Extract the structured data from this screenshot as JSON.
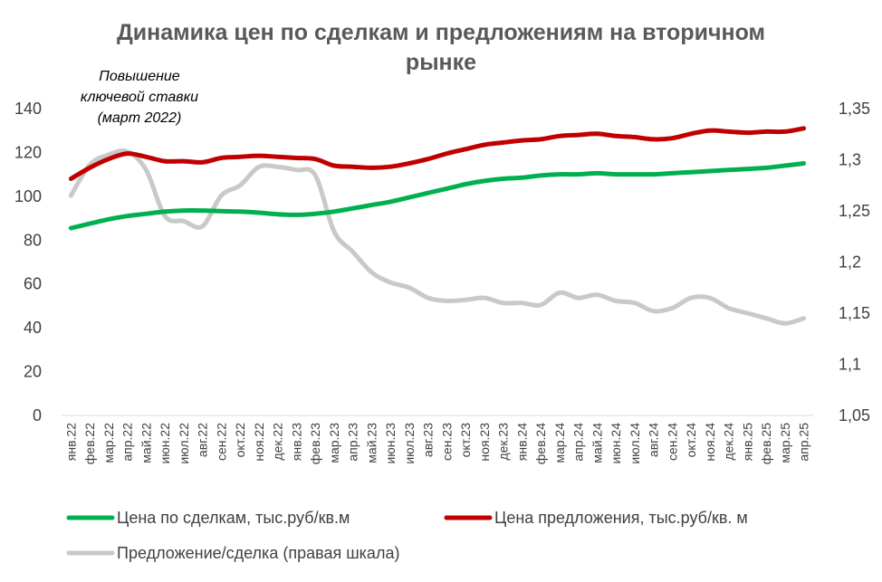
{
  "chart_data": {
    "type": "line",
    "title": "Динамика цен по сделкам и предложениям на вторичном рынке",
    "title_lines": [
      "Динамика цен по сделкам и предложениям на вторичном",
      "рынке"
    ],
    "annotation": [
      "Повышение",
      "ключевой ставки",
      "(март 2022)"
    ],
    "categories": [
      "янв.22",
      "фев.22",
      "мар.22",
      "апр.22",
      "май.22",
      "июн.22",
      "июл.22",
      "авг.22",
      "сен.22",
      "окт.22",
      "ноя.22",
      "дек.22",
      "янв.23",
      "фев.23",
      "мар.23",
      "апр.23",
      "май.23",
      "июн.23",
      "июл.23",
      "авг.23",
      "сен.23",
      "окт.23",
      "ноя.23",
      "дек.23",
      "янв.24",
      "фев.24",
      "мар.24",
      "апр.24",
      "май.24",
      "июн.24",
      "июл.24",
      "авг.24",
      "сен.24",
      "окт.24",
      "ноя.24",
      "дек.24",
      "янв.25",
      "фев.25",
      "мар.25",
      "апр.25"
    ],
    "y_left": {
      "min": 0,
      "max": 140,
      "ticks": [
        "0",
        "20",
        "40",
        "60",
        "80",
        "100",
        "120",
        "140"
      ]
    },
    "y_right": {
      "min": 1.05,
      "max": 1.35,
      "ticks": [
        "1,05",
        "1,1",
        "1,15",
        "1,2",
        "1,25",
        "1,3",
        "1,35"
      ]
    },
    "grid": false,
    "legend_position": "bottom",
    "series": [
      {
        "name": "Цена по сделкам, тыс.руб/кв.м",
        "axis": "left",
        "color": "#00B050",
        "values": [
          85.5,
          87.5,
          89.5,
          91,
          92,
          93,
          93.5,
          93.5,
          93.2,
          93,
          92.5,
          91.8,
          91.5,
          92,
          93,
          94.5,
          96,
          97.5,
          99.5,
          101.5,
          103.5,
          105.5,
          107,
          108,
          108.5,
          109.5,
          110,
          110,
          110.5,
          110,
          110,
          110,
          110.5,
          111,
          111.5,
          112,
          112.5,
          113,
          114,
          115
        ]
      },
      {
        "name": "Цена предложения, тыс.руб/кв. м",
        "axis": "left",
        "color": "#C00000",
        "values": [
          108,
          113,
          117,
          119.5,
          118,
          116,
          116,
          115.5,
          117.5,
          118,
          118.5,
          118,
          117.5,
          117,
          114,
          113.5,
          113,
          113.5,
          115,
          117,
          119.5,
          121.5,
          123.5,
          124.5,
          125.5,
          126,
          127.5,
          128,
          128.5,
          127.5,
          127,
          126,
          126.5,
          128.5,
          130,
          129.5,
          129,
          129.5,
          129.5,
          131
        ]
      },
      {
        "name": "Предложение/сделка (правая шкала)",
        "axis": "right",
        "color": "#C9C9C9",
        "values": [
          1.265,
          1.295,
          1.305,
          1.308,
          1.29,
          1.245,
          1.24,
          1.235,
          1.265,
          1.275,
          1.293,
          1.293,
          1.29,
          1.285,
          1.23,
          1.21,
          1.19,
          1.18,
          1.175,
          1.165,
          1.162,
          1.163,
          1.165,
          1.16,
          1.16,
          1.158,
          1.17,
          1.165,
          1.168,
          1.162,
          1.16,
          1.152,
          1.155,
          1.165,
          1.165,
          1.155,
          1.15,
          1.145,
          1.14,
          1.145
        ]
      }
    ]
  }
}
